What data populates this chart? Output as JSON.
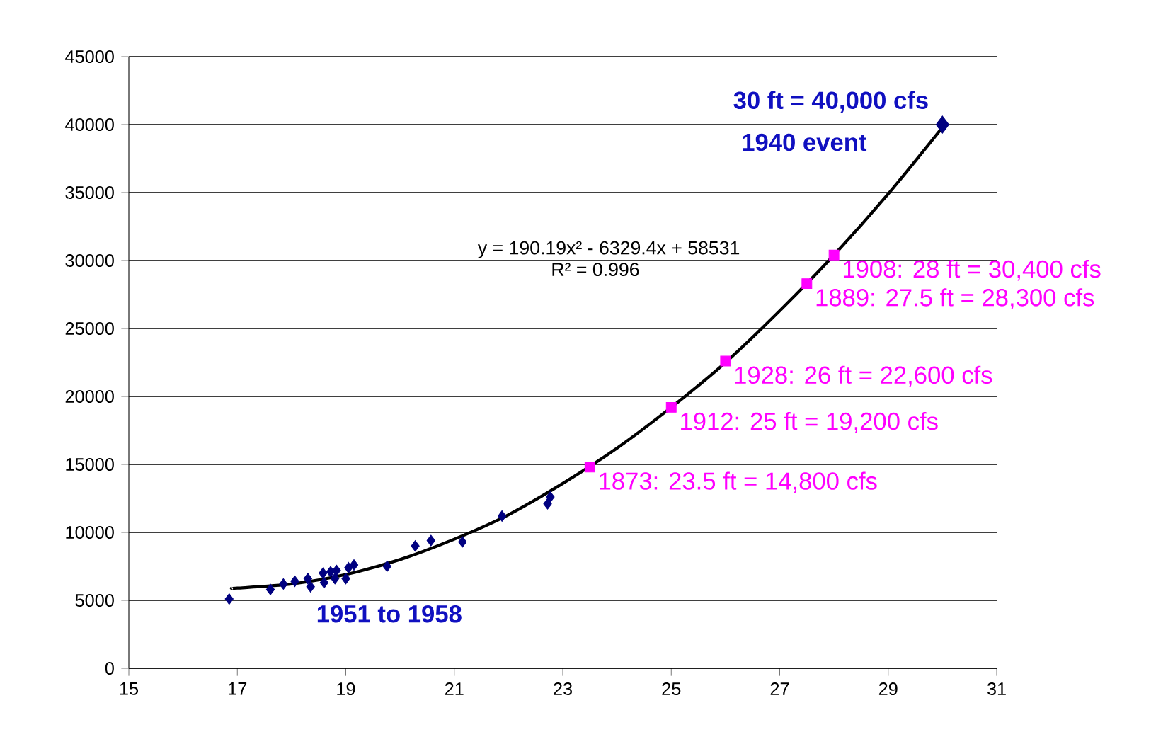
{
  "chart_data": {
    "type": "scatter",
    "xlim": [
      15,
      31
    ],
    "ylim": [
      0,
      45000
    ],
    "xticks": [
      15,
      17,
      19,
      21,
      23,
      25,
      27,
      29,
      31
    ],
    "yticks": [
      0,
      5000,
      10000,
      15000,
      20000,
      25000,
      30000,
      35000,
      40000,
      45000
    ],
    "grid": "y",
    "series": [
      {
        "marker": "diamond",
        "color": "#000080",
        "x": [
          16.85,
          17.61,
          17.85,
          18.06,
          18.3,
          18.35,
          18.58,
          18.6,
          18.72,
          18.8,
          18.83,
          19.0,
          19.05,
          19.15,
          19.76,
          20.28,
          20.57,
          21.15,
          21.88,
          22.72,
          22.77
        ],
        "values": [
          5100,
          5800,
          6200,
          6400,
          6600,
          6000,
          7000,
          6300,
          7100,
          6600,
          7200,
          6600,
          7400,
          7600,
          7500,
          9000,
          9400,
          9300,
          11200,
          12100,
          12600
        ]
      },
      {
        "marker": "square",
        "color": "#ff00ff",
        "x": [
          23.5,
          25,
          26,
          27.5,
          28
        ],
        "values": [
          14800,
          19200,
          22600,
          28300,
          30400
        ]
      },
      {
        "marker": "diamond",
        "color": "#000080",
        "x": [
          30
        ],
        "values": [
          40000
        ]
      },
      {
        "type": "line",
        "marker": "none",
        "color": "#000000",
        "x": [
          16.9,
          17,
          18,
          19,
          20,
          21,
          22,
          23,
          24,
          25,
          26,
          27,
          28,
          29,
          30
        ],
        "values": [
          5900,
          5900,
          6200,
          6900,
          8000,
          9500,
          11300,
          13600,
          16200,
          19200,
          22500,
          26300,
          30400,
          34900,
          39800
        ]
      }
    ],
    "annotations": [
      "y = 190.19x² - 6329.4x + 58531",
      "R² = 0.996",
      "1951 to 1958",
      {
        "text": "30 ft = 40,000 cfs",
        "x": 30,
        "y": 40000
      },
      "1940 event",
      {
        "text": "1908: 28 ft = 30,400 cfs",
        "x": 28,
        "y": 30400
      },
      {
        "text": "1889: 27.5 ft = 28,300 cfs",
        "x": 27.5,
        "y": 28300
      },
      {
        "text": "1928: 26 ft = 22,600 cfs",
        "x": 26,
        "y": 22600
      },
      {
        "text": "1912: 25 ft = 19,200 cfs",
        "x": 25,
        "y": 19200
      },
      {
        "text": "1873: 23.5 ft = 14,800 cfs",
        "x": 23.5,
        "y": 14800
      }
    ]
  }
}
